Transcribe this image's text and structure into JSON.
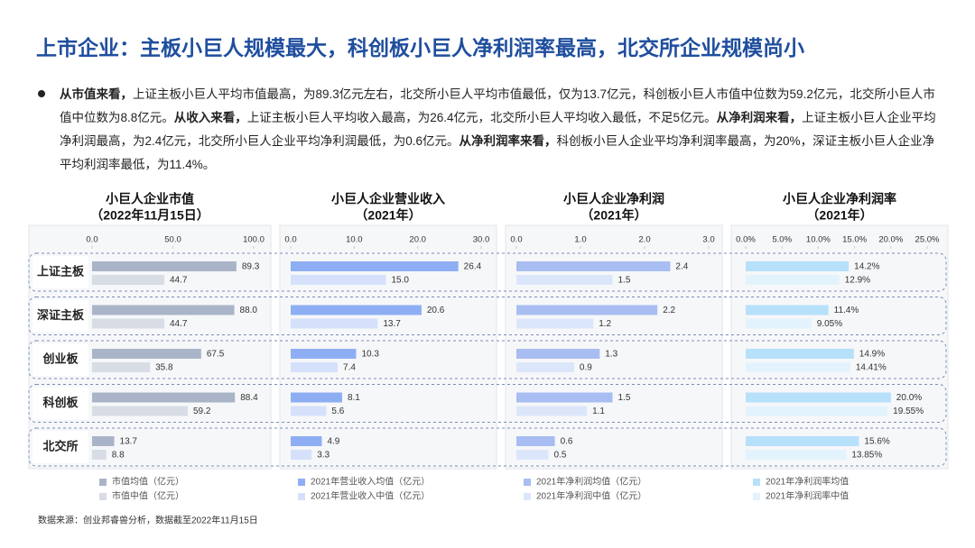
{
  "title": "上市企业：主板小巨人规模最大，科创板小巨人净利润率最高，北交所企业规模尚小",
  "bullet": [
    {
      "text": "从市值来看，",
      "bold": true
    },
    {
      "text": "上证主板小巨人平均市值最高，为89.3亿元左右，北交所小巨人平均市值最低，仅为13.7亿元，科创板小巨人市值中位数为59.2亿元，北交所小巨人市值中位数为8.8亿元。",
      "bold": false
    },
    {
      "text": "从收入来看，",
      "bold": true
    },
    {
      "text": "上证主板小巨人平均收入最高，为26.4亿元，北交所小巨人平均收入最低，不足5亿元。",
      "bold": false
    },
    {
      "text": "从净利润来看，",
      "bold": true
    },
    {
      "text": "上证主板小巨人企业平均净利润最高，为2.4亿元，北交所小巨人企业平均净利润最低，为0.6亿元。",
      "bold": false
    },
    {
      "text": "从净利润率来看，",
      "bold": true
    },
    {
      "text": "科创板小巨人企业平均净利润率最高，为20%，深证主板小巨人企业净平均利润率最低，为11.4%。",
      "bold": false
    }
  ],
  "source": "数据来源：创业邦睿兽分析，数据截至2022年11月15日",
  "chart_data": [
    {
      "type": "bar",
      "orientation": "horizontal",
      "title": "小巨人企业市值",
      "subtitle": "（2022年11月15日）",
      "categories": [
        "上证主板",
        "深证主板",
        "创业板",
        "科创板",
        "北交所"
      ],
      "xlim": [
        0,
        100
      ],
      "xticks": [
        {
          "value": 0,
          "label": "0.0"
        },
        {
          "value": 50,
          "label": "50.0"
        },
        {
          "value": 100,
          "label": "100.0"
        }
      ],
      "series": [
        {
          "name": "市值均值（亿元）",
          "color": "#aab4c8",
          "values": [
            89.3,
            88.0,
            67.5,
            88.4,
            13.7
          ],
          "value_labels": [
            "89.3",
            "88.0",
            "67.5",
            "88.4",
            "13.7"
          ]
        },
        {
          "name": "市值中值（亿元）",
          "color": "#d8dce5",
          "values": [
            44.7,
            44.7,
            35.8,
            59.2,
            8.8
          ],
          "value_labels": [
            "44.7",
            "44.7",
            "35.8",
            "59.2",
            "8.8"
          ]
        }
      ]
    },
    {
      "type": "bar",
      "orientation": "horizontal",
      "title": "小巨人企业营业收入",
      "subtitle": "（2021年）",
      "xlim": [
        0,
        30
      ],
      "xticks": [
        {
          "value": 0,
          "label": "0.0"
        },
        {
          "value": 10,
          "label": "10.0"
        },
        {
          "value": 20,
          "label": "20.0"
        },
        {
          "value": 30,
          "label": "30.0"
        }
      ],
      "series": [
        {
          "name": "2021年营业收入均值（亿元）",
          "color": "#8eaef4",
          "values": [
            26.4,
            20.6,
            10.3,
            8.1,
            4.9
          ],
          "value_labels": [
            "26.4",
            "20.6",
            "10.3",
            "8.1",
            "4.9"
          ]
        },
        {
          "name": "2021年营业收入中值（亿元）",
          "color": "#d5e1fb",
          "values": [
            15.0,
            13.7,
            7.4,
            5.6,
            3.3
          ],
          "value_labels": [
            "15.0",
            "13.7",
            "7.4",
            "5.6",
            "3.3"
          ]
        }
      ]
    },
    {
      "type": "bar",
      "orientation": "horizontal",
      "title": "小巨人企业净利润",
      "subtitle": "（2021年）",
      "xlim": [
        0,
        3
      ],
      "xticks": [
        {
          "value": 0,
          "label": "0.0"
        },
        {
          "value": 1,
          "label": "1.0"
        },
        {
          "value": 2,
          "label": "2.0"
        },
        {
          "value": 3,
          "label": "3.0"
        }
      ],
      "series": [
        {
          "name": "2021年净利润均值（亿元）",
          "color": "#a8bdf1",
          "values": [
            2.4,
            2.2,
            1.3,
            1.5,
            0.6
          ]
        },
        {
          "name": "2021年净利润中值（亿元）",
          "color": "#dce6fb",
          "values": [
            1.5,
            1.2,
            0.9,
            1.1,
            0.5
          ]
        }
      ]
    },
    {
      "type": "bar",
      "orientation": "horizontal",
      "title": "小巨人企业净利润率",
      "subtitle": "（2021年）",
      "xlim": [
        0,
        25
      ],
      "xticks": [
        {
          "value": 0,
          "label": "0.0%"
        },
        {
          "value": 5,
          "label": "5.0%"
        },
        {
          "value": 10,
          "label": "10.0%"
        },
        {
          "value": 15,
          "label": "15.0%"
        },
        {
          "value": 20,
          "label": "20.0%"
        },
        {
          "value": 25,
          "label": "25.0%"
        }
      ],
      "series": [
        {
          "name": "2021年净利润率均值",
          "color": "#b7e0fa",
          "values": [
            14.2,
            11.4,
            14.9,
            20.0,
            15.6
          ],
          "value_labels": [
            "14.2%",
            "11.4%",
            "14.9%",
            "20.0%",
            "15.6%"
          ]
        },
        {
          "name": "2021年净利润率中值",
          "color": "#e3f3fd",
          "values": [
            12.9,
            9.05,
            14.41,
            19.55,
            13.85
          ],
          "value_labels": [
            "12.9%",
            "9.05%",
            "14.41%",
            "19.55%",
            "13.85%"
          ]
        }
      ]
    }
  ]
}
